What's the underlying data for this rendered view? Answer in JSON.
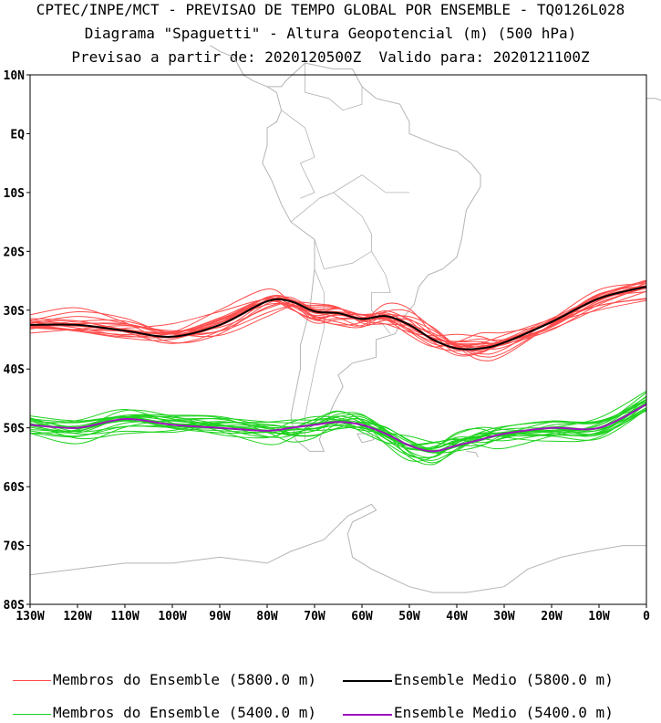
{
  "title": {
    "line1": "CPTEC/INPE/MCT - PREVISAO DE TEMPO GLOBAL POR ENSEMBLE - TQ0126L028",
    "line2": "Diagrama \"Spaguetti\" - Altura Geopotencial (m) (500 hPa)",
    "line3": "Previsao a partir de: 2020120500Z  Valido para: 2020121100Z"
  },
  "axes": {
    "lat_labels": [
      "10N",
      "EQ",
      "10S",
      "20S",
      "30S",
      "40S",
      "50S",
      "60S",
      "70S",
      "80S"
    ],
    "lat_values": [
      10,
      0,
      -10,
      -20,
      -30,
      -40,
      -50,
      -60,
      -70,
      -80
    ],
    "lon_labels": [
      "130W",
      "120W",
      "110W",
      "100W",
      "90W",
      "80W",
      "70W",
      "60W",
      "50W",
      "40W",
      "30W",
      "20W",
      "10W",
      "0"
    ],
    "lon_values": [
      -130,
      -120,
      -110,
      -100,
      -90,
      -80,
      -70,
      -60,
      -50,
      -40,
      -30,
      -20,
      -10,
      0
    ],
    "lon_range": [
      -130,
      0
    ],
    "lat_range": [
      -80,
      10
    ]
  },
  "colors": {
    "member_5800": "#ff4c4c",
    "mean_5800": "#000000",
    "member_5400": "#1fd21f",
    "mean_5400": "#a010c0",
    "coast": "#b4b4b4"
  },
  "legend": {
    "member_5800": "Membros do Ensemble (5800.0 m)",
    "mean_5800": "Ensemble Medio (5800.0 m)",
    "member_5400": "Membros do Ensemble (5400.0 m)",
    "mean_5400": "Ensemble Medio (5400.0 m)"
  },
  "chart_data": {
    "type": "line",
    "x": [
      -130,
      -120,
      -110,
      -100,
      -90,
      -80,
      -75,
      -70,
      -65,
      -60,
      -55,
      -50,
      -45,
      -40,
      -35,
      -30,
      -20,
      -10,
      0
    ],
    "series": [
      {
        "name": "Ensemble Medio (5800.0 m)",
        "values": [
          -32.5,
          -32.5,
          -33.5,
          -34.5,
          -32.5,
          -28.5,
          -28.5,
          -30.2,
          -30.5,
          -31.5,
          -31,
          -32.5,
          -35,
          -36.5,
          -36.5,
          -35.5,
          -32,
          -28,
          -26
        ]
      },
      {
        "name": "Ensemble Medio (5400.0 m)",
        "values": [
          -49.5,
          -50,
          -48.5,
          -49.5,
          -50,
          -50.5,
          -50,
          -49.5,
          -49,
          -49.5,
          -51,
          -53,
          -54,
          -53,
          -52,
          -51,
          -50,
          -50,
          -46
        ]
      }
    ],
    "members": {
      "member_5800": 20,
      "member_5400": 20
    }
  }
}
